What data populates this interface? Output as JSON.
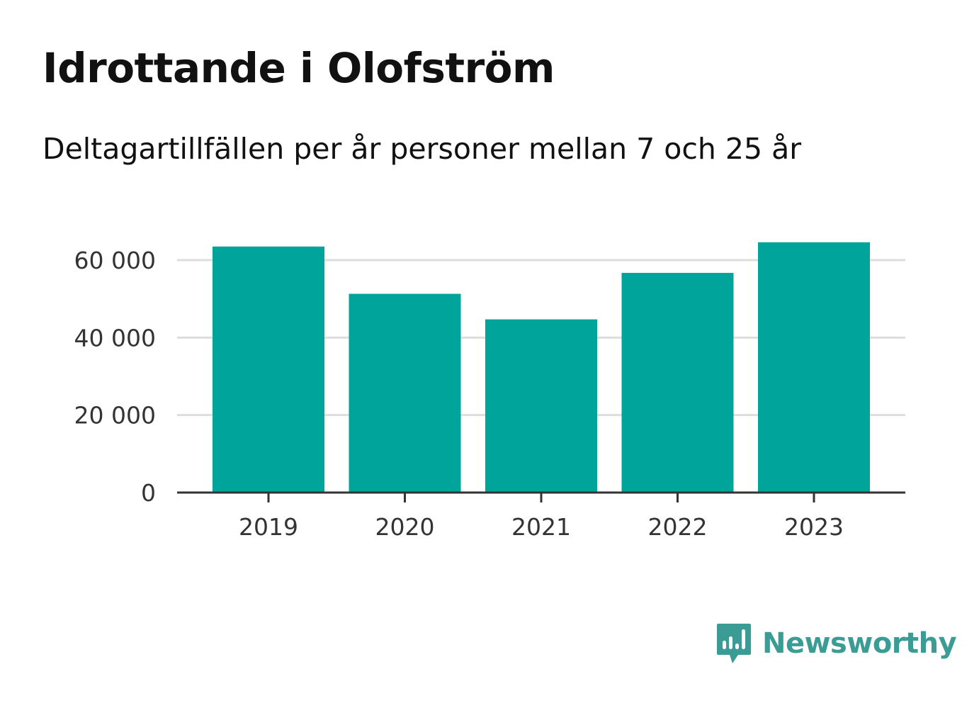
{
  "chart_data": {
    "type": "bar",
    "title": "Idrottande i Olofström",
    "subtitle": "Deltagartillfällen per år personer mellan 7 och 25 år",
    "categories": [
      "2019",
      "2020",
      "2021",
      "2022",
      "2023"
    ],
    "values": [
      63500,
      51300,
      44700,
      56700,
      64600
    ],
    "ylim": [
      0,
      70000
    ],
    "yticks": [
      0,
      20000,
      40000,
      60000
    ],
    "ytick_labels": [
      "0",
      "20 000",
      "40 000",
      "60 000"
    ],
    "grid": true,
    "bar_color": "#00a49a",
    "grid_color": "#dddddd",
    "axis_color": "#333333"
  },
  "branding": {
    "logo_text": "Newsworthy",
    "logo_icon": "bar-chart-speech-bubble-icon",
    "logo_color": "#3b9c95"
  }
}
